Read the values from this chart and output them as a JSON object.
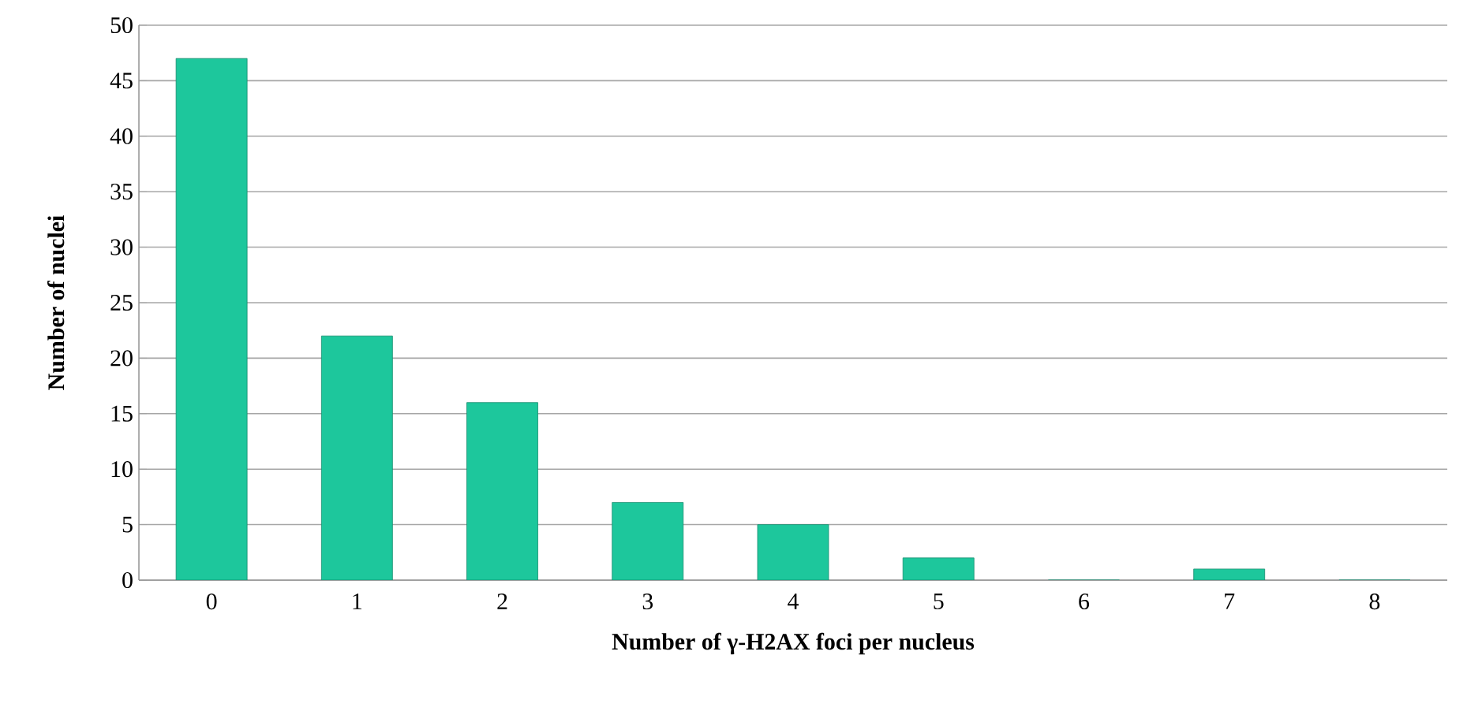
{
  "chart_data": {
    "type": "bar",
    "xlabel": "Number of γ-H2AX foci per nucleus",
    "ylabel": "Number of nuclei",
    "categories": [
      "0",
      "1",
      "2",
      "3",
      "4",
      "5",
      "6",
      "7",
      "8"
    ],
    "values": [
      47,
      22,
      16,
      7,
      5,
      2,
      0,
      1,
      0
    ],
    "color": "#1dc79c",
    "ylim": [
      0,
      50
    ],
    "yticks": [
      0,
      5,
      10,
      15,
      20,
      25,
      30,
      35,
      40,
      45,
      50
    ],
    "grid": "y"
  }
}
